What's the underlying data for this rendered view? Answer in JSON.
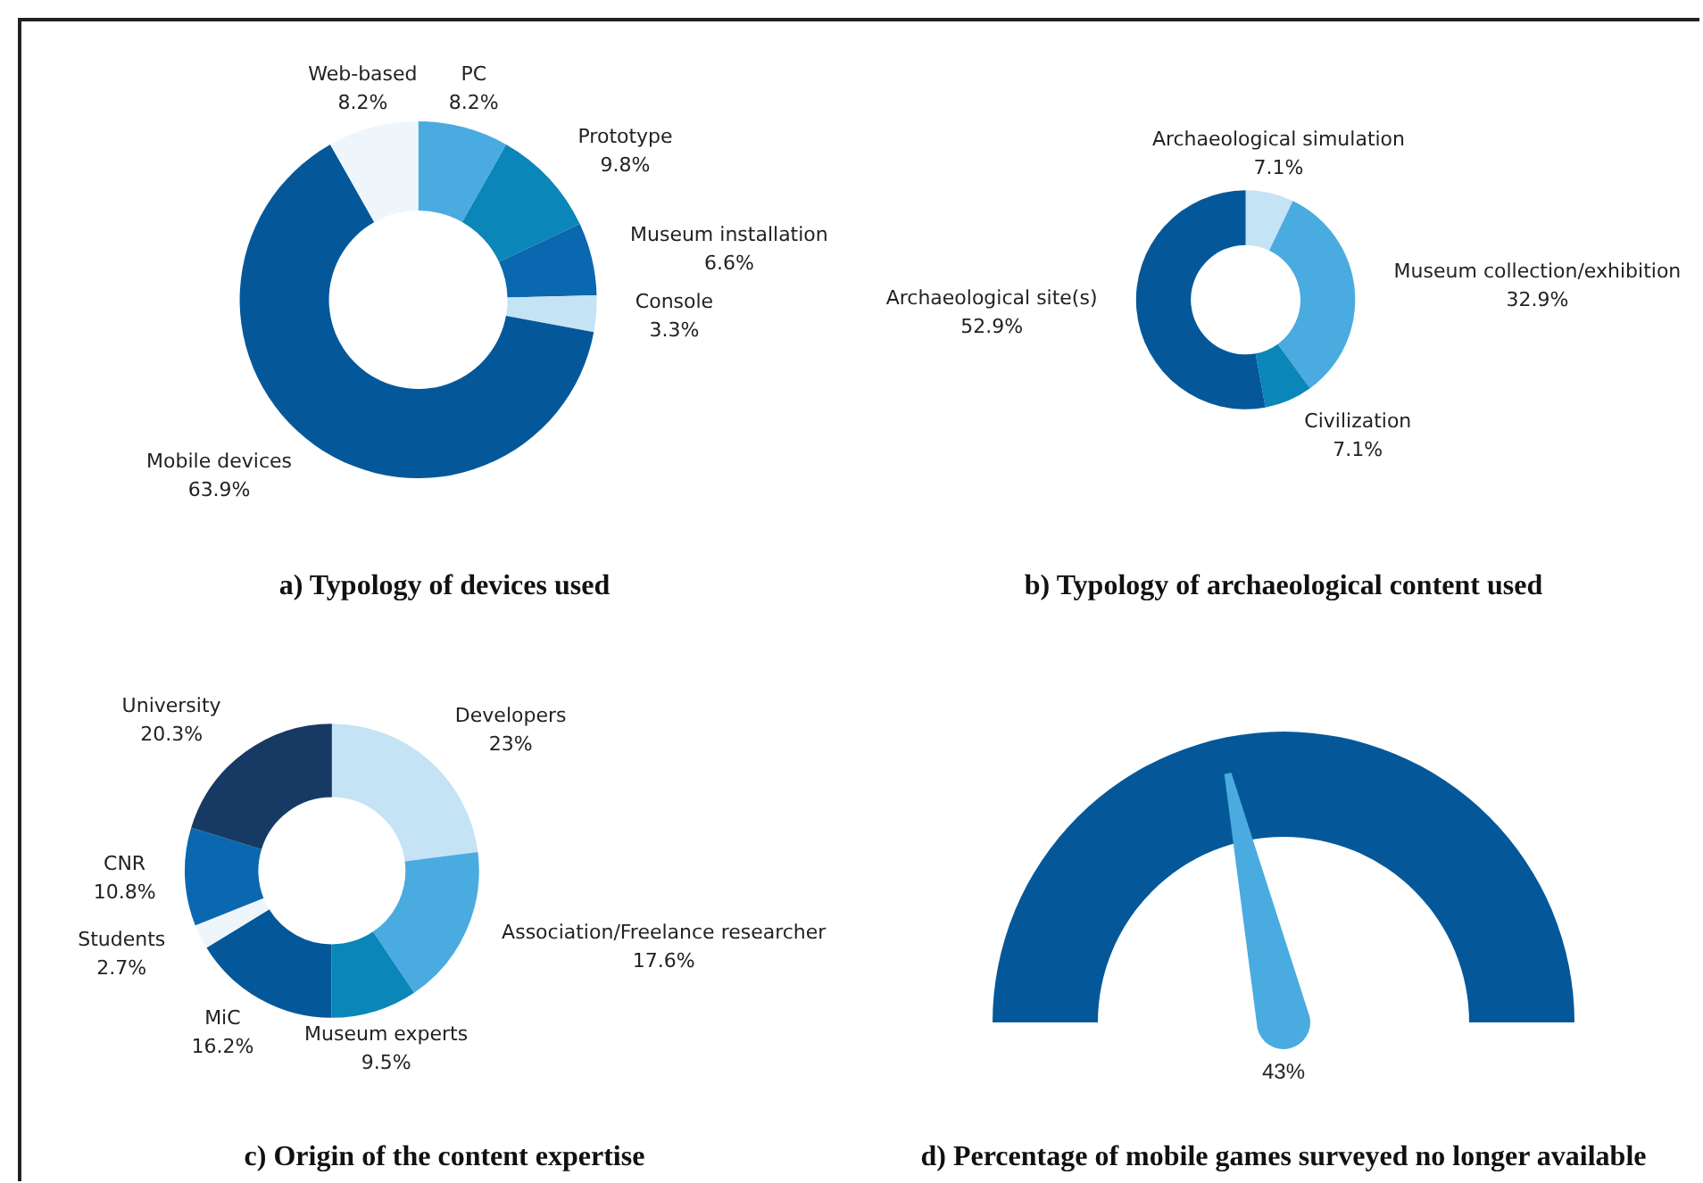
{
  "chart_data": [
    {
      "type": "donut",
      "title": "a) Typology of devices used",
      "categories": [
        "PC",
        "Prototype",
        "Museum installation",
        "Console",
        "Mobile devices",
        "Web-based"
      ],
      "values": [
        8.2,
        9.8,
        6.6,
        3.3,
        63.9,
        8.2
      ],
      "value_labels": [
        "8.2%",
        "9.8%",
        "6.6%",
        "3.3%",
        "63.9%",
        "8.2%"
      ],
      "colors": [
        "#4aabe0",
        "#0a86b8",
        "#0a68b0",
        "#c4e3f5",
        "#04589a",
        "#eef6fc"
      ]
    },
    {
      "type": "donut",
      "title": "b) Typology of archaeological content used",
      "categories": [
        "Archaeological simulation",
        "Museum collection/exhibition",
        "Civilization",
        "Archaeological site(s)"
      ],
      "values": [
        7.1,
        32.9,
        7.1,
        52.9
      ],
      "value_labels": [
        "7.1%",
        "32.9%",
        "7.1%",
        "52.9%"
      ],
      "colors": [
        "#c4e3f5",
        "#4aabe0",
        "#0a86b8",
        "#04589a"
      ]
    },
    {
      "type": "donut",
      "title": "c) Origin of the content expertise",
      "categories": [
        "Developers",
        "Association/Freelance researcher",
        "Museum experts",
        "MiC",
        "Students",
        "CNR",
        "University"
      ],
      "values": [
        23,
        17.6,
        9.5,
        16.2,
        2.7,
        10.8,
        20.3
      ],
      "value_labels": [
        "23%",
        "17.6%",
        "9.5%",
        "16.2%",
        "2.7%",
        "10.8%",
        "20.3%"
      ],
      "colors": [
        "#c4e3f5",
        "#4aabe0",
        "#0a86b8",
        "#04589a",
        "#eef6fc",
        "#0a68b0",
        "#163a64"
      ]
    },
    {
      "type": "other",
      "title": "d) Percentage of mobile games surveyed no longer available",
      "values": [
        43
      ],
      "value_labels": [
        "43%"
      ],
      "colors": [
        "#04589a"
      ],
      "color": "#4aabe0"
    }
  ]
}
